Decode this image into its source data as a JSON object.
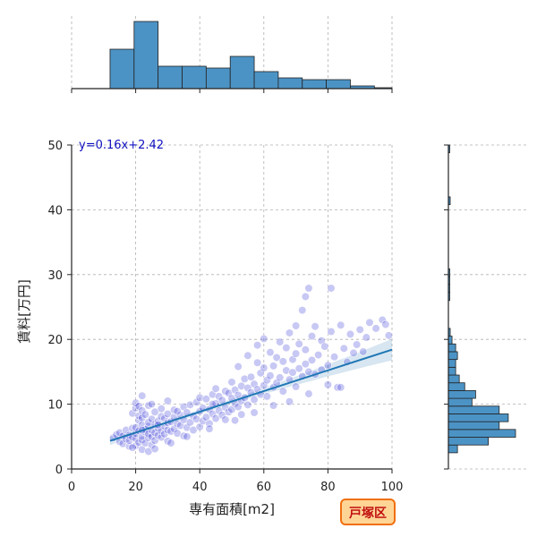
{
  "chart_data": {
    "type": "scatter",
    "xlabel": "専有面積[m2]",
    "ylabel": "賃料[万円]",
    "xlim": [
      0,
      100
    ],
    "ylim": [
      0,
      50
    ],
    "x_ticks": [
      0,
      20,
      40,
      60,
      80,
      100
    ],
    "y_ticks": [
      0,
      10,
      20,
      30,
      40,
      50
    ],
    "grid": true,
    "regression": {
      "label": "y=0.16x+2.42",
      "slope": 0.16,
      "intercept": 2.42,
      "x_range": [
        12,
        100
      ]
    },
    "badge": "戸塚区",
    "colors": {
      "point": "#3a3ad8",
      "regression_line": "#1f77b4",
      "bars": "#4c93c5",
      "equation": "#1010c0",
      "badge_fill": "#ffd596",
      "badge_border": "#f07010",
      "badge_text": "#c01010"
    },
    "points": [
      [
        13,
        4.8
      ],
      [
        14,
        5.3
      ],
      [
        15,
        4.2
      ],
      [
        15,
        5.6
      ],
      [
        16,
        3.9
      ],
      [
        16,
        5.1
      ],
      [
        17,
        4.6
      ],
      [
        17,
        6.0
      ],
      [
        18,
        3.5
      ],
      [
        18,
        4.4
      ],
      [
        18,
        5.2
      ],
      [
        19,
        4.9
      ],
      [
        19,
        6.3
      ],
      [
        19,
        8.6
      ],
      [
        20,
        3.6
      ],
      [
        20,
        4.7
      ],
      [
        20,
        5.5
      ],
      [
        20,
        6.4
      ],
      [
        20,
        9.4
      ],
      [
        20,
        10.2
      ],
      [
        21,
        4.1
      ],
      [
        21,
        5.9
      ],
      [
        21,
        7.5
      ],
      [
        21,
        8.2
      ],
      [
        21,
        9.7
      ],
      [
        22,
        3.0
      ],
      [
        22,
        4.5
      ],
      [
        22,
        5.0
      ],
      [
        22,
        6.8
      ],
      [
        22,
        7.9
      ],
      [
        22,
        9.0
      ],
      [
        22,
        11.3
      ],
      [
        23,
        4.0
      ],
      [
        23,
        5.7
      ],
      [
        23,
        6.1
      ],
      [
        23,
        8.4
      ],
      [
        24,
        4.8
      ],
      [
        24,
        5.4
      ],
      [
        24,
        6.6
      ],
      [
        24,
        7.2
      ],
      [
        24,
        9.8
      ],
      [
        25,
        3.7
      ],
      [
        25,
        5.0
      ],
      [
        25,
        6.0
      ],
      [
        25,
        7.7
      ],
      [
        25,
        10.0
      ],
      [
        26,
        4.4
      ],
      [
        26,
        5.6
      ],
      [
        26,
        6.9
      ],
      [
        26,
        8.8
      ],
      [
        27,
        5.2
      ],
      [
        27,
        6.3
      ],
      [
        27,
        7.4
      ],
      [
        28,
        4.9
      ],
      [
        28,
        5.9
      ],
      [
        28,
        8.1
      ],
      [
        28,
        9.3
      ],
      [
        29,
        5.4
      ],
      [
        29,
        6.6
      ],
      [
        29,
        7.8
      ],
      [
        30,
        4.3
      ],
      [
        30,
        6.0
      ],
      [
        30,
        7.1
      ],
      [
        30,
        8.5
      ],
      [
        30,
        10.5
      ],
      [
        31,
        5.8
      ],
      [
        31,
        7.3
      ],
      [
        32,
        6.2
      ],
      [
        32,
        8.0
      ],
      [
        32,
        9.1
      ],
      [
        33,
        5.5
      ],
      [
        33,
        7.0
      ],
      [
        34,
        6.7
      ],
      [
        34,
        8.3
      ],
      [
        35,
        5.1
      ],
      [
        35,
        7.6
      ],
      [
        35,
        9.6
      ],
      [
        36,
        6.4
      ],
      [
        36,
        8.7
      ],
      [
        37,
        7.2
      ],
      [
        37,
        9.9
      ],
      [
        38,
        6.0
      ],
      [
        38,
        8.2
      ],
      [
        39,
        7.7
      ],
      [
        39,
        10.3
      ],
      [
        40,
        6.5
      ],
      [
        40,
        8.9
      ],
      [
        40,
        11.0
      ],
      [
        41,
        7.4
      ],
      [
        41,
        9.4
      ],
      [
        42,
        8.0
      ],
      [
        42,
        10.8
      ],
      [
        43,
        7.0
      ],
      [
        43,
        9.2
      ],
      [
        44,
        8.5
      ],
      [
        44,
        11.5
      ],
      [
        45,
        7.8
      ],
      [
        45,
        10.1
      ],
      [
        45,
        12.4
      ],
      [
        46,
        9.0
      ],
      [
        46,
        11.2
      ],
      [
        47,
        8.3
      ],
      [
        47,
        10.6
      ],
      [
        48,
        9.5
      ],
      [
        48,
        12.0
      ],
      [
        49,
        8.8
      ],
      [
        49,
        11.7
      ],
      [
        50,
        9.2
      ],
      [
        50,
        10.9
      ],
      [
        50,
        13.4
      ],
      [
        51,
        10.1
      ],
      [
        51,
        12.2
      ],
      [
        52,
        9.6
      ],
      [
        52,
        11.4
      ],
      [
        52,
        15.8
      ],
      [
        53,
        10.5
      ],
      [
        53,
        12.8
      ],
      [
        54,
        11.0
      ],
      [
        54,
        13.9
      ],
      [
        55,
        9.9
      ],
      [
        55,
        12.5
      ],
      [
        55,
        17.5
      ],
      [
        56,
        11.8
      ],
      [
        56,
        14.2
      ],
      [
        57,
        10.7
      ],
      [
        57,
        13.1
      ],
      [
        58,
        12.3
      ],
      [
        58,
        16.4
      ],
      [
        58,
        19.1
      ],
      [
        59,
        11.5
      ],
      [
        59,
        14.8
      ],
      [
        60,
        12.9
      ],
      [
        60,
        15.6
      ],
      [
        60,
        20.1
      ],
      [
        61,
        11.2
      ],
      [
        61,
        13.7
      ],
      [
        62,
        14.4
      ],
      [
        62,
        18.0
      ],
      [
        63,
        12.6
      ],
      [
        63,
        15.9
      ],
      [
        64,
        13.3
      ],
      [
        64,
        17.2
      ],
      [
        65,
        14.1
      ],
      [
        65,
        19.6
      ],
      [
        66,
        12.0
      ],
      [
        66,
        16.6
      ],
      [
        67,
        15.2
      ],
      [
        67,
        18.7
      ],
      [
        68,
        13.8
      ],
      [
        68,
        21.0
      ],
      [
        69,
        14.9
      ],
      [
        69,
        16.9
      ],
      [
        70,
        12.7
      ],
      [
        70,
        17.8
      ],
      [
        70,
        22.1
      ],
      [
        71,
        15.5
      ],
      [
        71,
        19.3
      ],
      [
        72,
        14.3
      ],
      [
        72,
        24.5
      ],
      [
        73,
        16.2
      ],
      [
        73,
        18.4
      ],
      [
        73,
        26.6
      ],
      [
        74,
        15.0
      ],
      [
        74,
        27.9
      ],
      [
        75,
        16.8
      ],
      [
        75,
        20.5
      ],
      [
        76,
        14.6
      ],
      [
        76,
        22.0
      ],
      [
        77,
        17.6
      ],
      [
        78,
        15.3
      ],
      [
        78,
        19.8
      ],
      [
        79,
        18.9
      ],
      [
        80,
        13.0
      ],
      [
        80,
        16.0
      ],
      [
        81,
        21.2
      ],
      [
        81,
        27.9
      ],
      [
        82,
        17.3
      ],
      [
        83,
        12.6
      ],
      [
        84,
        22.2
      ],
      [
        85,
        18.6
      ],
      [
        86,
        16.5
      ],
      [
        87,
        20.8
      ],
      [
        88,
        17.9
      ],
      [
        89,
        19.2
      ],
      [
        90,
        21.5
      ],
      [
        91,
        18.1
      ],
      [
        92,
        20.3
      ],
      [
        93,
        22.6
      ],
      [
        95,
        21.7
      ],
      [
        97,
        23.0
      ],
      [
        98,
        22.3
      ],
      [
        99,
        20.6
      ],
      [
        24,
        2.7
      ],
      [
        19,
        3.3
      ],
      [
        26,
        3.1
      ],
      [
        31,
        4.0
      ],
      [
        36,
        5.0
      ],
      [
        43,
        6.2
      ],
      [
        51,
        7.5
      ],
      [
        57,
        8.7
      ],
      [
        63,
        9.8
      ],
      [
        68,
        10.4
      ],
      [
        74,
        11.6
      ],
      [
        84,
        12.6
      ],
      [
        22,
        6.0
      ],
      [
        27,
        6.8
      ],
      [
        33,
        8.9
      ],
      [
        44,
        10.0
      ],
      [
        48,
        7.6
      ],
      [
        53,
        8.4
      ]
    ],
    "top_histogram": {
      "bin_edges": [
        12,
        19.5,
        27,
        34.5,
        42,
        49.5,
        57,
        64.5,
        72,
        79.5,
        87,
        94.5,
        102
      ],
      "counts": [
        44,
        75,
        25,
        25,
        23,
        36,
        19,
        12,
        10,
        10,
        3,
        1
      ]
    },
    "right_histogram": {
      "bin_edges": [
        2.5,
        3.7,
        4.9,
        6.1,
        7.3,
        8.5,
        9.7,
        10.9,
        12.1,
        13.3,
        14.5,
        15.7,
        16.9,
        18.1,
        19.3,
        20.5,
        21.7,
        22.9,
        26.0,
        27.3,
        28.5,
        29.7,
        30.9,
        40.8,
        42.0,
        48.8,
        50.0
      ],
      "counts": [
        5,
        22,
        37,
        28,
        33,
        28,
        13,
        15,
        9,
        6,
        4,
        4,
        5,
        4,
        2,
        1,
        0,
        0,
        0.5,
        0.5,
        0.5,
        0.5,
        0,
        1,
        0,
        0.5
      ]
    }
  }
}
